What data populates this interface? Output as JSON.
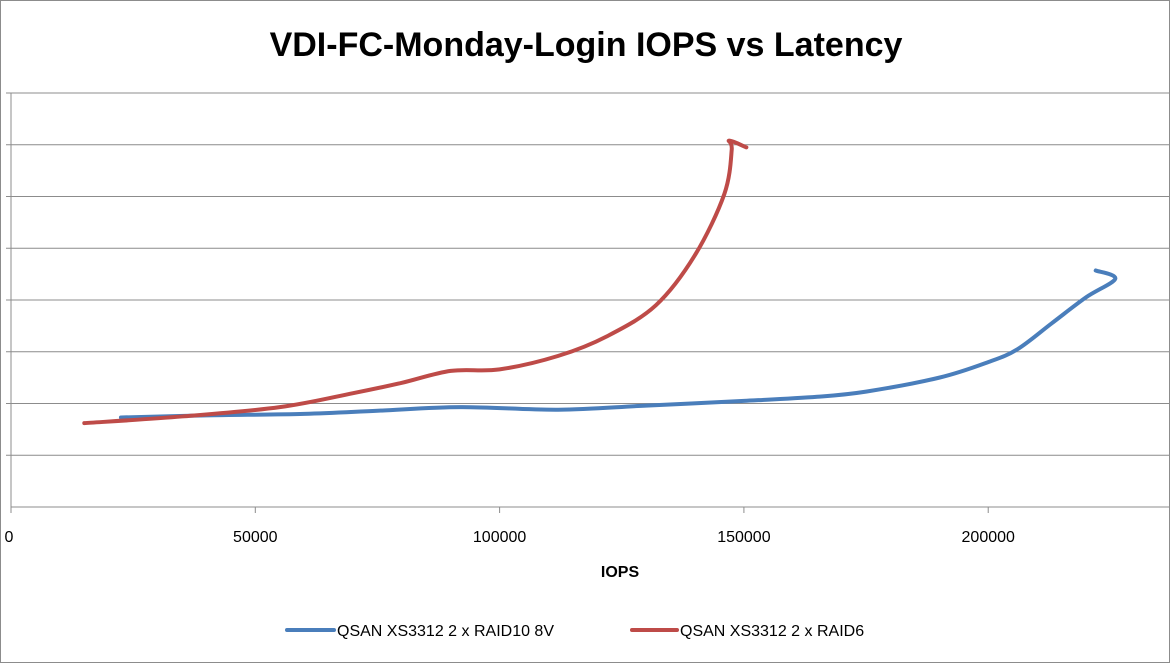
{
  "chart_data": {
    "type": "line",
    "title": "VDI-FC-Monday-Login IOPS vs Latency",
    "xlabel": "IOPS",
    "ylabel": "",
    "xlim": [
      0,
      237000
    ],
    "ylim": [
      0,
      8
    ],
    "x_ticks": [
      0,
      50000,
      100000,
      150000,
      200000
    ],
    "x_tick_labels": [
      "0",
      "50000",
      "100000",
      "150000",
      "200000"
    ],
    "y_gridlines": [
      1,
      2,
      3,
      4,
      5,
      6,
      7,
      8
    ],
    "legend_position": "bottom",
    "series": [
      {
        "name": "QSAN XS3312 2 x RAID10 8V",
        "color": "#4a7ebb",
        "points": [
          [
            22500,
            1.73
          ],
          [
            40000,
            1.77
          ],
          [
            60000,
            1.8
          ],
          [
            75000,
            1.86
          ],
          [
            92000,
            1.93
          ],
          [
            112000,
            1.88
          ],
          [
            130000,
            1.96
          ],
          [
            150000,
            2.05
          ],
          [
            165000,
            2.13
          ],
          [
            175000,
            2.23
          ],
          [
            190000,
            2.5
          ],
          [
            200000,
            2.8
          ],
          [
            206000,
            3.05
          ],
          [
            213000,
            3.55
          ],
          [
            220000,
            4.05
          ],
          [
            226000,
            4.41
          ],
          [
            222000,
            4.57
          ]
        ]
      },
      {
        "name": "QSAN XS3312 2 x RAID6",
        "color": "#be4b48",
        "points": [
          [
            15000,
            1.62
          ],
          [
            35000,
            1.75
          ],
          [
            55000,
            1.93
          ],
          [
            70000,
            2.2
          ],
          [
            80000,
            2.4
          ],
          [
            90000,
            2.63
          ],
          [
            100000,
            2.66
          ],
          [
            112000,
            2.92
          ],
          [
            122000,
            3.3
          ],
          [
            132000,
            3.9
          ],
          [
            140000,
            4.87
          ],
          [
            146000,
            6.05
          ],
          [
            147500,
            6.9
          ],
          [
            147000,
            7.08
          ],
          [
            150500,
            6.95
          ]
        ]
      }
    ]
  }
}
